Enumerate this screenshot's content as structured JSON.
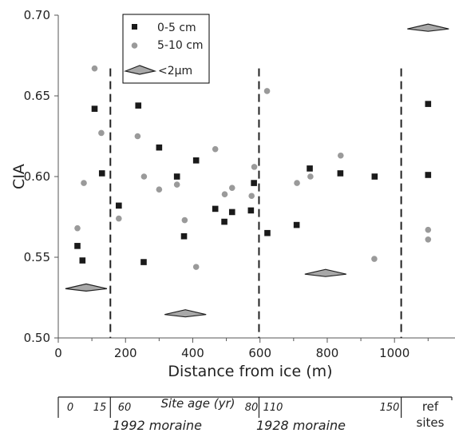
{
  "chart_data": {
    "type": "scatter",
    "xlabel": "Distance from ice (m)",
    "ylabel": "CIA",
    "xlim": [
      0,
      1180
    ],
    "ylim": [
      0.5,
      0.7
    ],
    "x_ticks": [
      0,
      200,
      400,
      600,
      800,
      1000
    ],
    "x_tick_labels": [
      "0",
      "200",
      "400",
      "600",
      "800",
      "1000"
    ],
    "y_ticks": [
      0.5,
      0.55,
      0.6,
      0.65,
      0.7
    ],
    "y_tick_labels": [
      "0.50",
      "0.55",
      "0.60",
      "0.65",
      "0.70"
    ],
    "legend_position": "top-left",
    "series": [
      {
        "name": "0-5 cm",
        "marker": "square",
        "color": "#1a1a1a",
        "points": [
          [
            57,
            0.557
          ],
          [
            72,
            0.548
          ],
          [
            108,
            0.642
          ],
          [
            130,
            0.602
          ],
          [
            180,
            0.582
          ],
          [
            238,
            0.644
          ],
          [
            254,
            0.547
          ],
          [
            300,
            0.618
          ],
          [
            353,
            0.6
          ],
          [
            374,
            0.563
          ],
          [
            410,
            0.61
          ],
          [
            467,
            0.58
          ],
          [
            494,
            0.572
          ],
          [
            517,
            0.578
          ],
          [
            573,
            0.579
          ],
          [
            582,
            0.596
          ],
          [
            622,
            0.565
          ],
          [
            709,
            0.57
          ],
          [
            748,
            0.605
          ],
          [
            839,
            0.602
          ],
          [
            941,
            0.6
          ],
          [
            1100,
            0.645
          ],
          [
            1100,
            0.601
          ]
        ]
      },
      {
        "name": "5-10 cm",
        "marker": "circle",
        "color": "#9a9a9a",
        "points": [
          [
            57,
            0.568
          ],
          [
            76,
            0.596
          ],
          [
            108,
            0.667
          ],
          [
            128,
            0.627
          ],
          [
            180,
            0.574
          ],
          [
            236,
            0.625
          ],
          [
            255,
            0.6
          ],
          [
            300,
            0.592
          ],
          [
            353,
            0.595
          ],
          [
            376,
            0.573
          ],
          [
            410,
            0.544
          ],
          [
            467,
            0.617
          ],
          [
            495,
            0.589
          ],
          [
            517,
            0.593
          ],
          [
            575,
            0.588
          ],
          [
            583,
            0.606
          ],
          [
            621,
            0.653
          ],
          [
            710,
            0.596
          ],
          [
            750,
            0.6
          ],
          [
            840,
            0.613
          ],
          [
            940,
            0.549
          ],
          [
            1100,
            0.567
          ],
          [
            1100,
            0.561
          ]
        ]
      },
      {
        "name": "<2μm",
        "marker": "triangle",
        "color": "#a8a8a8",
        "points": [
          [
            83,
            0.531
          ],
          [
            378,
            0.515
          ],
          [
            795,
            0.54
          ],
          [
            1100,
            0.692
          ]
        ]
      }
    ],
    "boundaries": [
      155,
      597,
      1020
    ],
    "site_age": {
      "label": "Site age (yr)",
      "ticks": [
        {
          "text": "0",
          "x": 10
        },
        {
          "text": "15",
          "x": 128
        },
        {
          "text": "60",
          "x": 190
        },
        {
          "text": "80",
          "x": 560
        },
        {
          "text": "110",
          "x": 665
        },
        {
          "text": "150",
          "x": 985
        }
      ],
      "zones": [
        {
          "text": "1992 moraine",
          "x": 450
        },
        {
          "text": "1928 moraine",
          "x": 800
        }
      ],
      "ref_label": [
        "ref",
        "sites"
      ]
    }
  }
}
